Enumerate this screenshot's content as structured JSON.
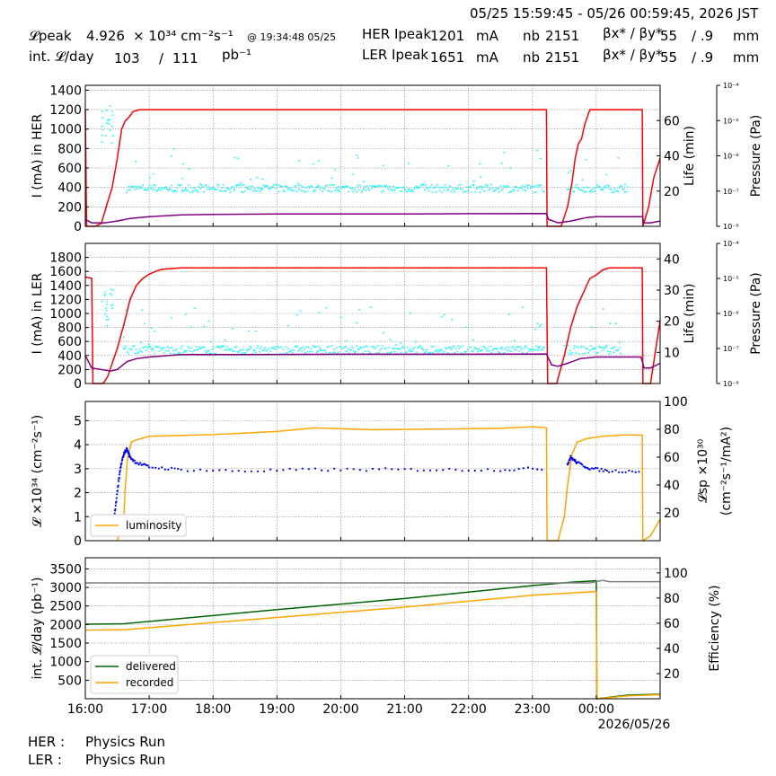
{
  "header": {
    "time_range": "05/25 15:59:45 - 05/26 00:59:45, 2026 JST",
    "lpeak_label": "𝓛peak",
    "lpeak_value": "4.926",
    "lpeak_unit": "× 10³⁴ cm⁻²s⁻¹",
    "lpeak_time": "@ 19:34:48 05/25",
    "intl_label": "int. 𝓛/day",
    "intl_value": "103",
    "intl_slash": "/",
    "intl_total": "111",
    "intl_unit": "pb⁻¹",
    "her_label": "HER Ipeak",
    "her_value": "1201",
    "her_unit": "mA",
    "ler_label": "LER Ipeak",
    "ler_value": "1651",
    "ler_unit": "mA",
    "nb_label": "nb",
    "nb_her": "2151",
    "nb_ler": "2151",
    "beta_label": "βx* / βy*",
    "beta_x_her": "55",
    "beta_y_her": "/ .9",
    "beta_x_ler": "55",
    "beta_y_ler": "/ .9",
    "beta_unit": "mm"
  },
  "footer": {
    "her_label": "HER :",
    "her_status": "Physics Run",
    "ler_label": "LER :",
    "ler_status": "Physics Run"
  },
  "colors": {
    "current": "#ff0000",
    "life": "#800080",
    "pressure": "#00ffff",
    "luminosity": "#ffa500",
    "specific": "#0000ff",
    "delivered": "#006400",
    "recorded": "#ffa500",
    "efficiency": "#808080"
  },
  "chart_data": [
    {
      "type": "line",
      "id": "her",
      "ylabel": "I (mA) in HER",
      "ylim": [
        0,
        1450
      ],
      "yticks": [
        0,
        200,
        400,
        600,
        800,
        1000,
        1200,
        1400
      ],
      "y2label": "Life (min)",
      "y2lim": [
        0,
        80
      ],
      "y2ticks": [
        20,
        40,
        60
      ],
      "y3label": "Pressure (Pa)",
      "y3ticks": [
        "10⁻⁸",
        "10⁻⁷",
        "10⁻⁶",
        "10⁻⁵",
        "10⁻⁴"
      ],
      "xlim": [
        16.0,
        25.0
      ],
      "grid": true,
      "series": [
        {
          "key": "current",
          "axis": "left",
          "points": [
            [
              16.0,
              1200
            ],
            [
              16.02,
              0
            ],
            [
              16.15,
              0
            ],
            [
              16.25,
              30
            ],
            [
              16.35,
              250
            ],
            [
              16.42,
              400
            ],
            [
              16.5,
              700
            ],
            [
              16.57,
              1000
            ],
            [
              16.62,
              1080
            ],
            [
              16.68,
              1120
            ],
            [
              16.75,
              1180
            ],
            [
              16.85,
              1200
            ],
            [
              23.22,
              1200
            ],
            [
              23.23,
              0
            ],
            [
              23.45,
              0
            ],
            [
              23.55,
              200
            ],
            [
              23.62,
              450
            ],
            [
              23.67,
              700
            ],
            [
              23.72,
              850
            ],
            [
              23.77,
              900
            ],
            [
              23.82,
              1050
            ],
            [
              23.9,
              1200
            ],
            [
              24.72,
              1200
            ],
            [
              24.73,
              0
            ],
            [
              24.82,
              200
            ],
            [
              24.9,
              500
            ],
            [
              25.0,
              700
            ]
          ]
        },
        {
          "key": "life",
          "axis": "right",
          "points": [
            [
              16.0,
              4
            ],
            [
              16.1,
              2
            ],
            [
              16.3,
              2
            ],
            [
              16.5,
              3
            ],
            [
              16.7,
              4.5
            ],
            [
              17.0,
              5.5
            ],
            [
              17.5,
              6.5
            ],
            [
              18.0,
              6.8
            ],
            [
              19.0,
              7
            ],
            [
              20.0,
              7
            ],
            [
              21.0,
              7
            ],
            [
              22.0,
              7.2
            ],
            [
              23.22,
              7.3
            ],
            [
              23.25,
              4
            ],
            [
              23.4,
              2
            ],
            [
              23.6,
              3
            ],
            [
              23.85,
              5
            ],
            [
              24.0,
              5.5
            ],
            [
              24.72,
              5.5
            ],
            [
              24.75,
              2
            ],
            [
              24.85,
              2
            ],
            [
              25.0,
              3
            ]
          ]
        }
      ],
      "scatter": {
        "key": "pressure",
        "y_center": 390,
        "y_spread": 40,
        "bursts": [
          [
            16.35,
            1050,
            200
          ]
        ]
      }
    },
    {
      "type": "line",
      "id": "ler",
      "ylabel": "I (mA) in LER",
      "ylim": [
        0,
        2000
      ],
      "yticks": [
        0,
        200,
        400,
        600,
        800,
        1000,
        1200,
        1400,
        1600,
        1800
      ],
      "y2label": "Life (min)",
      "y2lim": [
        0,
        45
      ],
      "y2ticks": [
        10,
        20,
        30,
        40
      ],
      "y3label": "Pressure (Pa)",
      "y3ticks": [
        "10⁻⁸",
        "10⁻⁷",
        "10⁻⁶",
        "10⁻⁵",
        "10⁻⁴"
      ],
      "xlim": [
        16.0,
        25.0
      ],
      "grid": true,
      "series": [
        {
          "key": "current",
          "axis": "left",
          "points": [
            [
              16.0,
              1520
            ],
            [
              16.1,
              1500
            ],
            [
              16.12,
              0
            ],
            [
              16.28,
              0
            ],
            [
              16.35,
              100
            ],
            [
              16.5,
              500
            ],
            [
              16.62,
              900
            ],
            [
              16.7,
              1200
            ],
            [
              16.8,
              1400
            ],
            [
              16.9,
              1500
            ],
            [
              17.0,
              1560
            ],
            [
              17.1,
              1600
            ],
            [
              17.2,
              1630
            ],
            [
              17.5,
              1650
            ],
            [
              23.22,
              1650
            ],
            [
              23.24,
              0
            ],
            [
              23.38,
              0
            ],
            [
              23.5,
              400
            ],
            [
              23.6,
              800
            ],
            [
              23.7,
              1100
            ],
            [
              23.8,
              1300
            ],
            [
              23.9,
              1500
            ],
            [
              24.0,
              1550
            ],
            [
              24.1,
              1620
            ],
            [
              24.2,
              1650
            ],
            [
              24.72,
              1650
            ],
            [
              24.73,
              0
            ],
            [
              24.85,
              0
            ],
            [
              24.95,
              600
            ],
            [
              25.0,
              900
            ]
          ]
        },
        {
          "key": "life",
          "axis": "right",
          "points": [
            [
              16.0,
              9
            ],
            [
              16.1,
              5
            ],
            [
              16.4,
              4
            ],
            [
              16.5,
              4.5
            ],
            [
              16.65,
              7
            ],
            [
              16.8,
              8
            ],
            [
              17.0,
              8.5
            ],
            [
              17.5,
              9.3
            ],
            [
              18.5,
              9.3
            ],
            [
              20.0,
              9.4
            ],
            [
              22.0,
              9.4
            ],
            [
              23.22,
              9.5
            ],
            [
              23.3,
              6
            ],
            [
              23.4,
              5.5
            ],
            [
              23.55,
              6.5
            ],
            [
              23.75,
              8
            ],
            [
              24.0,
              8.5
            ],
            [
              24.7,
              8.5
            ],
            [
              24.75,
              5
            ],
            [
              24.85,
              5
            ],
            [
              25.0,
              6.5
            ]
          ]
        }
      ],
      "scatter": {
        "key": "pressure",
        "y_center": 480,
        "y_spread": 60,
        "bursts": [
          [
            16.35,
            1100,
            300
          ]
        ]
      }
    },
    {
      "type": "line",
      "id": "lumi",
      "ylabel": "𝓛 ×10³⁴ (cm⁻²s⁻¹)",
      "ylim": [
        0,
        5.8
      ],
      "yticks": [
        0,
        1,
        2,
        3,
        4,
        5
      ],
      "y2label_1": "𝓛sp ×10³⁰",
      "y2label_2": "(cm⁻²s⁻¹/mA²)",
      "y2lim": [
        0,
        100
      ],
      "y2ticks": [
        20,
        40,
        60,
        80,
        100
      ],
      "xlim": [
        16.0,
        25.0
      ],
      "grid": true,
      "legend": {
        "label": "luminosity",
        "placement": "lower left"
      },
      "series": [
        {
          "key": "luminosity",
          "axis": "left",
          "points": [
            [
              16.5,
              0
            ],
            [
              16.6,
              0.8
            ],
            [
              16.62,
              2
            ],
            [
              16.66,
              3.4
            ],
            [
              16.72,
              4.1
            ],
            [
              16.8,
              4.2
            ],
            [
              17.0,
              4.35
            ],
            [
              18.0,
              4.42
            ],
            [
              19.0,
              4.55
            ],
            [
              19.6,
              4.7
            ],
            [
              20.5,
              4.62
            ],
            [
              21.5,
              4.65
            ],
            [
              22.5,
              4.68
            ],
            [
              23.0,
              4.75
            ],
            [
              23.22,
              4.7
            ],
            [
              23.23,
              0
            ],
            [
              23.4,
              0
            ],
            [
              23.5,
              1
            ],
            [
              23.55,
              2.3
            ],
            [
              23.62,
              3.6
            ],
            [
              23.7,
              4.1
            ],
            [
              23.85,
              4.25
            ],
            [
              24.1,
              4.35
            ],
            [
              24.4,
              4.4
            ],
            [
              24.72,
              4.4
            ],
            [
              24.73,
              0
            ],
            [
              24.85,
              0.2
            ],
            [
              25.0,
              0.9
            ]
          ]
        },
        {
          "key": "specific",
          "axis": "right",
          "points": [
            [
              16.45,
              15
            ],
            [
              16.5,
              35
            ],
            [
              16.55,
              52
            ],
            [
              16.6,
              62
            ],
            [
              16.65,
              66
            ],
            [
              16.7,
              60
            ],
            [
              16.8,
              56
            ],
            [
              17.0,
              53
            ],
            [
              17.5,
              51
            ],
            [
              18.5,
              50
            ],
            [
              19.5,
              51
            ],
            [
              20.5,
              51
            ],
            [
              21.5,
              51
            ],
            [
              22.5,
              51
            ],
            [
              23.22,
              52
            ]
          ]
        },
        {
          "key": "specific",
          "axis": "right",
          "points": [
            [
              23.55,
              55
            ],
            [
              23.6,
              60
            ],
            [
              23.7,
              56
            ],
            [
              23.9,
              52
            ],
            [
              24.2,
              50
            ],
            [
              24.72,
              50
            ]
          ]
        }
      ]
    },
    {
      "type": "line",
      "id": "intl",
      "ylabel": "int. 𝓛/day (pb⁻¹)",
      "ylim": [
        0,
        3800
      ],
      "yticks": [
        500,
        1000,
        1500,
        2000,
        2500,
        3000,
        3500
      ],
      "y2label": "Efficiency (%)",
      "y2lim": [
        0,
        112
      ],
      "y2ticks": [
        20,
        40,
        60,
        80,
        100
      ],
      "xlim": [
        16.0,
        25.0
      ],
      "xticks": [
        "16:00",
        "17:00",
        "18:00",
        "19:00",
        "20:00",
        "21:00",
        "22:00",
        "23:00",
        "00:00"
      ],
      "date_label": "2026/05/26",
      "grid": true,
      "legend": {
        "labels": [
          "delivered",
          "recorded"
        ],
        "placement": "lower left"
      },
      "series": [
        {
          "key": "delivered",
          "axis": "left",
          "name": "delivered",
          "points": [
            [
              16.0,
              2010
            ],
            [
              16.6,
              2020
            ],
            [
              19.0,
              2400
            ],
            [
              21.0,
              2700
            ],
            [
              23.0,
              3050
            ],
            [
              23.6,
              3140
            ],
            [
              24.0,
              3180
            ],
            [
              24.01,
              0
            ],
            [
              24.5,
              100
            ],
            [
              25.0,
              120
            ]
          ]
        },
        {
          "key": "recorded",
          "axis": "left",
          "name": "recorded",
          "points": [
            [
              16.0,
              1850
            ],
            [
              16.6,
              1860
            ],
            [
              19.0,
              2190
            ],
            [
              21.0,
              2470
            ],
            [
              23.0,
              2790
            ],
            [
              23.6,
              2850
            ],
            [
              24.0,
              2890
            ],
            [
              24.01,
              0
            ],
            [
              24.5,
              80
            ],
            [
              25.0,
              110
            ]
          ]
        },
        {
          "key": "efficiency",
          "axis": "right",
          "points": [
            [
              16.0,
              92
            ],
            [
              20.0,
              92
            ],
            [
              23.9,
              92
            ],
            [
              24.0,
              93
            ],
            [
              24.1,
              94
            ],
            [
              24.2,
              93
            ],
            [
              25.0,
              93
            ]
          ]
        }
      ]
    }
  ]
}
